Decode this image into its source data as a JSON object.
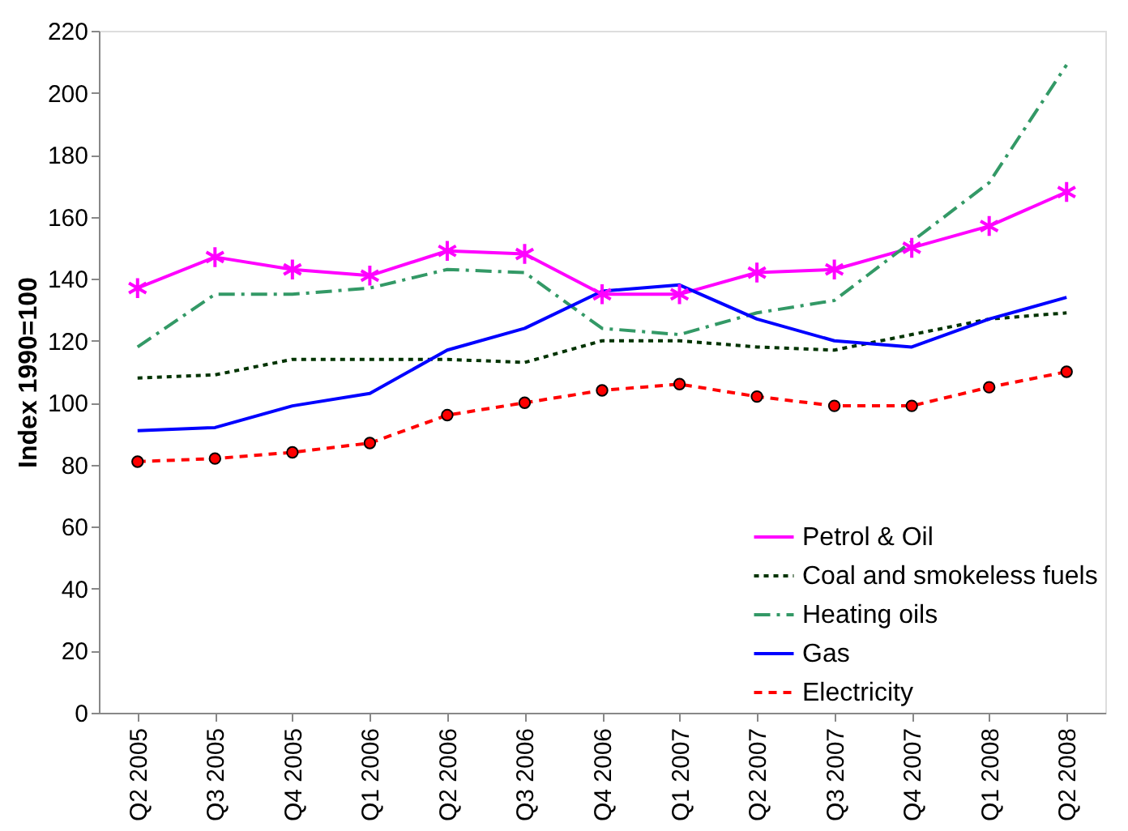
{
  "chart_data": {
    "type": "line",
    "ylabel": "Index 1990=100",
    "categories": [
      "Q2 2005",
      "Q3 2005",
      "Q4 2005",
      "Q1 2006",
      "Q2 2006",
      "Q3 2006",
      "Q4 2006",
      "Q1 2007",
      "Q2 2007",
      "Q3 2007",
      "Q4 2007",
      "Q1 2008",
      "Q2 2008"
    ],
    "ylim": [
      0,
      220
    ],
    "yticks": [
      0,
      20,
      40,
      60,
      80,
      100,
      120,
      140,
      160,
      180,
      200,
      220
    ],
    "grid": false,
    "legend": "bottom right",
    "series": [
      {
        "name": "Petrol & Oil",
        "color": "#ff00ff",
        "marker": "cross",
        "line_style": "solid",
        "values": [
          137,
          147,
          143,
          141,
          149,
          148,
          135,
          135,
          142,
          143,
          150,
          157,
          168
        ]
      },
      {
        "name": "Coal and smokeless fuels",
        "color": "#003300",
        "marker": "none",
        "line_style": "dotted",
        "values": [
          108,
          109,
          114,
          114,
          114,
          113,
          120,
          120,
          118,
          117,
          122,
          127,
          129
        ]
      },
      {
        "name": "Heating oils",
        "color": "#339966",
        "marker": "none",
        "line_style": "dashdot",
        "values": [
          118,
          135,
          135,
          137,
          143,
          142,
          124,
          122,
          129,
          133,
          152,
          171,
          209
        ]
      },
      {
        "name": "Gas",
        "color": "#0000ff",
        "marker": "none",
        "line_style": "solid",
        "values": [
          91,
          92,
          99,
          103,
          117,
          124,
          136,
          138,
          127,
          120,
          118,
          127,
          134
        ]
      },
      {
        "name": "Electricity",
        "color": "#ff0000",
        "marker": "circle",
        "line_style": "dashed",
        "values": [
          81,
          82,
          84,
          87,
          96,
          100,
          104,
          106,
          102,
          99,
          99,
          105,
          110
        ]
      }
    ]
  }
}
